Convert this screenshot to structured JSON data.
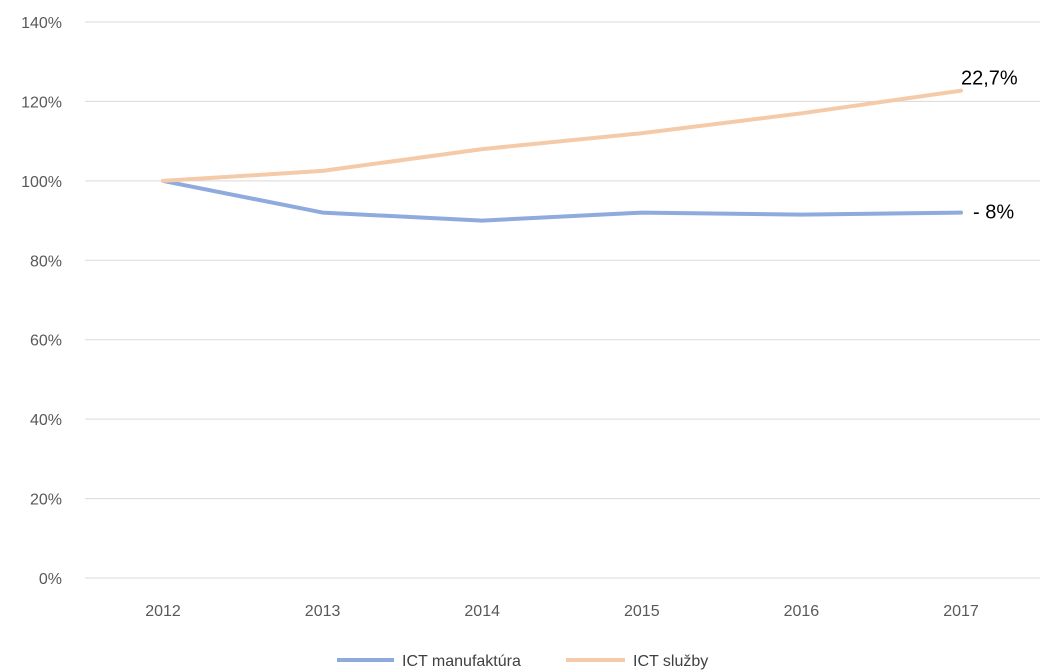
{
  "chart_data": {
    "type": "line",
    "title": "",
    "xlabel": "",
    "ylabel": "",
    "categories": [
      "2012",
      "2013",
      "2014",
      "2015",
      "2016",
      "2017"
    ],
    "ylim": [
      0,
      140
    ],
    "yticks": [
      0,
      20,
      40,
      60,
      80,
      100,
      120,
      140
    ],
    "ytick_labels": [
      "0%",
      "20%",
      "40%",
      "60%",
      "80%",
      "100%",
      "120%",
      "140%"
    ],
    "grid": true,
    "legend": "bottom",
    "series": [
      {
        "name": "ICT manufaktúra",
        "color": "#8faadc",
        "values": [
          100,
          92,
          90,
          92,
          91.5,
          92
        ]
      },
      {
        "name": "ICT služby",
        "color": "#f4caa8",
        "values": [
          100,
          102.5,
          108,
          112,
          117,
          122.7
        ]
      }
    ],
    "annotations": [
      {
        "text": "22,7%",
        "series": 1
      },
      {
        "text": "- 8%",
        "series": 0
      }
    ]
  }
}
